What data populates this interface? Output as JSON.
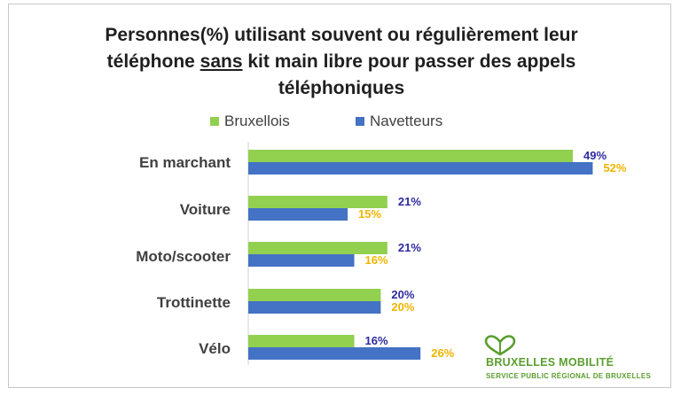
{
  "chart_data": {
    "type": "bar",
    "orientation": "horizontal",
    "title_parts": [
      "Personnes(%) utilisant souvent ou régulièrement leur",
      "téléphone ",
      "sans",
      " kit main libre pour passer des appels",
      "téléphoniques"
    ],
    "categories": [
      "En marchant",
      "Voiture",
      "Moto/scooter",
      "Trottinette",
      "Vélo"
    ],
    "series": [
      {
        "name": "Bruxellois",
        "values": [
          49,
          21,
          21,
          20,
          16
        ],
        "color": "#92d050",
        "label_color": "#2e2a9e"
      },
      {
        "name": "Navetteurs",
        "values": [
          52,
          15,
          16,
          20,
          26
        ],
        "color": "#4472c4",
        "label_color": "#f0b400"
      }
    ],
    "value_suffix": "%",
    "xlim": [
      0,
      60
    ],
    "grid": false,
    "legend_position": "top"
  },
  "logo": {
    "name": "BRUXELLES MOBILITÉ",
    "subtitle": "SERVICE PUBLIC RÉGIONAL DE BRUXELLES",
    "icon": "heart-leaf-icon",
    "color": "#5a9e2f"
  }
}
